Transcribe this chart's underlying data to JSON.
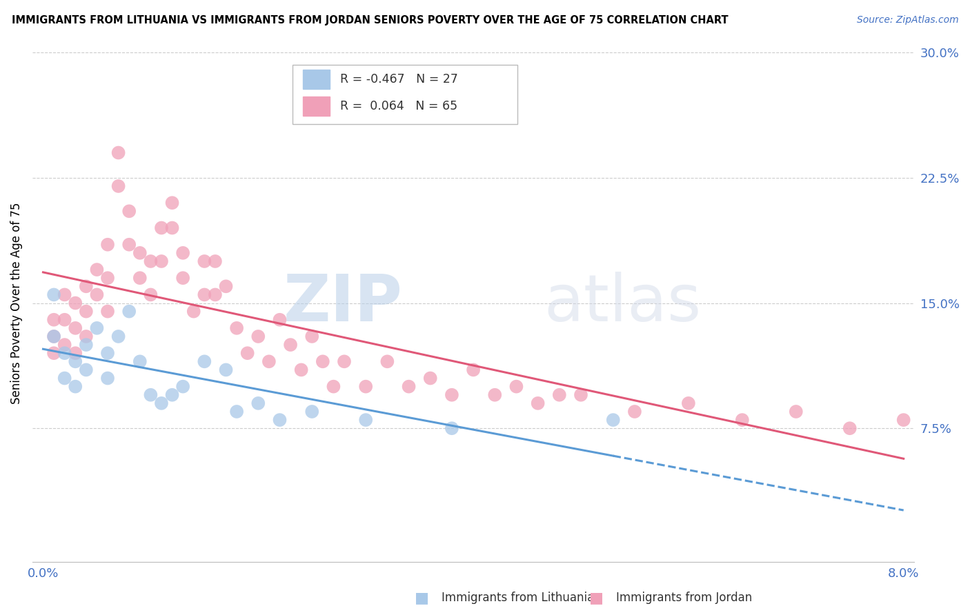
{
  "title": "IMMIGRANTS FROM LITHUANIA VS IMMIGRANTS FROM JORDAN SENIORS POVERTY OVER THE AGE OF 75 CORRELATION CHART",
  "source": "Source: ZipAtlas.com",
  "ylabel": "Seniors Poverty Over the Age of 75",
  "xlim": [
    0.0,
    0.08
  ],
  "ylim": [
    0.0,
    0.3
  ],
  "ytick_labels_right": [
    "30.0%",
    "22.5%",
    "15.0%",
    "7.5%"
  ],
  "ytick_vals_right": [
    0.3,
    0.225,
    0.15,
    0.075
  ],
  "legend1_label": "Immigrants from Lithuania",
  "legend2_label": "Immigrants from Jordan",
  "color_lithuania": "#a8c8e8",
  "color_jordan": "#f0a0b8",
  "color_line_lithuania": "#5b9bd5",
  "color_line_jordan": "#e05878",
  "watermark_zip": "ZIP",
  "watermark_atlas": "atlas",
  "lithuania_x": [
    0.001,
    0.001,
    0.002,
    0.002,
    0.003,
    0.003,
    0.004,
    0.004,
    0.005,
    0.006,
    0.006,
    0.007,
    0.008,
    0.009,
    0.01,
    0.011,
    0.012,
    0.013,
    0.015,
    0.017,
    0.018,
    0.02,
    0.022,
    0.025,
    0.03,
    0.038,
    0.053
  ],
  "lithuania_y": [
    0.155,
    0.13,
    0.12,
    0.105,
    0.115,
    0.1,
    0.125,
    0.11,
    0.135,
    0.12,
    0.105,
    0.13,
    0.145,
    0.115,
    0.095,
    0.09,
    0.095,
    0.1,
    0.115,
    0.11,
    0.085,
    0.09,
    0.08,
    0.085,
    0.08,
    0.075,
    0.08
  ],
  "jordan_x": [
    0.001,
    0.001,
    0.001,
    0.002,
    0.002,
    0.002,
    0.003,
    0.003,
    0.003,
    0.004,
    0.004,
    0.004,
    0.005,
    0.005,
    0.006,
    0.006,
    0.006,
    0.007,
    0.007,
    0.008,
    0.008,
    0.009,
    0.009,
    0.01,
    0.01,
    0.011,
    0.011,
    0.012,
    0.012,
    0.013,
    0.013,
    0.014,
    0.015,
    0.015,
    0.016,
    0.016,
    0.017,
    0.018,
    0.019,
    0.02,
    0.021,
    0.022,
    0.023,
    0.024,
    0.025,
    0.026,
    0.027,
    0.028,
    0.03,
    0.032,
    0.034,
    0.036,
    0.038,
    0.04,
    0.042,
    0.044,
    0.046,
    0.048,
    0.05,
    0.055,
    0.06,
    0.065,
    0.07,
    0.075,
    0.08
  ],
  "jordan_y": [
    0.14,
    0.13,
    0.12,
    0.155,
    0.14,
    0.125,
    0.15,
    0.135,
    0.12,
    0.16,
    0.145,
    0.13,
    0.17,
    0.155,
    0.185,
    0.165,
    0.145,
    0.24,
    0.22,
    0.205,
    0.185,
    0.18,
    0.165,
    0.175,
    0.155,
    0.195,
    0.175,
    0.21,
    0.195,
    0.18,
    0.165,
    0.145,
    0.175,
    0.155,
    0.175,
    0.155,
    0.16,
    0.135,
    0.12,
    0.13,
    0.115,
    0.14,
    0.125,
    0.11,
    0.13,
    0.115,
    0.1,
    0.115,
    0.1,
    0.115,
    0.1,
    0.105,
    0.095,
    0.11,
    0.095,
    0.1,
    0.09,
    0.095,
    0.095,
    0.085,
    0.09,
    0.08,
    0.085,
    0.075,
    0.08
  ]
}
